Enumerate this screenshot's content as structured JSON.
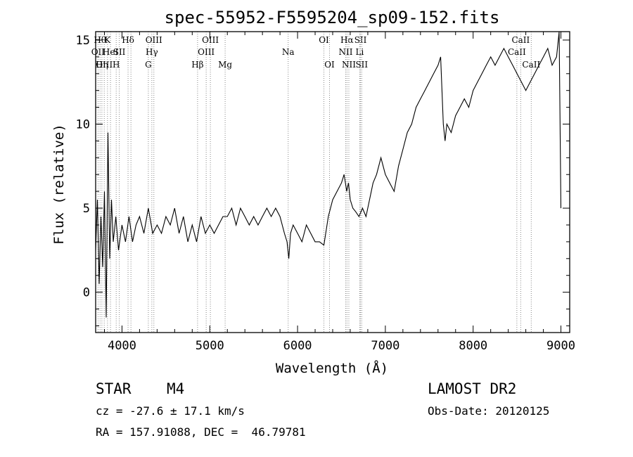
{
  "chart_data": {
    "type": "line",
    "title": "spec-55952-F5595204_sp09-152.fits",
    "xlabel": "Wavelength (Å)",
    "ylabel": "Flux (relative)",
    "xlim": [
      3700,
      9100
    ],
    "ylim": [
      -2.4,
      15.5
    ],
    "xticks": [
      4000,
      5000,
      6000,
      7000,
      8000,
      9000
    ],
    "yticks": [
      0,
      5,
      10,
      15
    ],
    "grid": false,
    "series": [
      {
        "x": [
          3700,
          3720,
          3740,
          3760,
          3780,
          3800,
          3820,
          3840,
          3860,
          3880,
          3900,
          3930,
          3960,
          4000,
          4040,
          4080,
          4120,
          4160,
          4200,
          4250,
          4300,
          4350,
          4400,
          4450,
          4500,
          4550,
          4600,
          4650,
          4700,
          4750,
          4800,
          4850,
          4900,
          4950,
          5000,
          5050,
          5100,
          5150,
          5200,
          5250,
          5300,
          5350,
          5400,
          5450,
          5500,
          5550,
          5600,
          5650,
          5700,
          5750,
          5800,
          5850,
          5880,
          5900,
          5920,
          5950,
          6000,
          6050,
          6100,
          6150,
          6200,
          6250,
          6300,
          6350,
          6400,
          6450,
          6500,
          6530,
          6560,
          6580,
          6600,
          6630,
          6660,
          6700,
          6740,
          6780,
          6820,
          6860,
          6900,
          6950,
          7000,
          7050,
          7100,
          7150,
          7200,
          7250,
          7300,
          7350,
          7400,
          7450,
          7500,
          7550,
          7600,
          7630,
          7660,
          7680,
          7700,
          7750,
          7800,
          7850,
          7900,
          7950,
          8000,
          8050,
          8100,
          8150,
          8200,
          8250,
          8300,
          8350,
          8400,
          8450,
          8500,
          8550,
          8600,
          8650,
          8700,
          8750,
          8800,
          8850,
          8900,
          8950,
          8980,
          9000
        ],
        "y": [
          2.5,
          5.5,
          0.5,
          4.5,
          1.5,
          6.0,
          -1.5,
          9.5,
          2.0,
          5.5,
          3.0,
          4.5,
          2.5,
          4.0,
          3.0,
          4.5,
          3.0,
          4.0,
          4.5,
          3.5,
          5.0,
          3.5,
          4.0,
          3.5,
          4.5,
          4.0,
          5.0,
          3.5,
          4.5,
          3.0,
          4.0,
          3.0,
          4.5,
          3.5,
          4.0,
          3.5,
          4.0,
          4.5,
          4.5,
          5.0,
          4.0,
          5.0,
          4.5,
          4.0,
          4.5,
          4.0,
          4.5,
          5.0,
          4.5,
          5.0,
          4.5,
          3.5,
          3.0,
          2.0,
          3.5,
          4.0,
          3.5,
          3.0,
          4.0,
          3.5,
          3.0,
          3.0,
          2.8,
          4.5,
          5.5,
          6.0,
          6.5,
          7.0,
          6.0,
          6.5,
          5.5,
          5.0,
          4.8,
          4.5,
          5.0,
          4.5,
          5.5,
          6.5,
          7.0,
          8.0,
          7.0,
          6.5,
          6.0,
          7.5,
          8.5,
          9.5,
          10.0,
          11.0,
          11.5,
          12.0,
          12.5,
          13.0,
          13.5,
          14.0,
          10.0,
          9.0,
          10.0,
          9.5,
          10.5,
          11.0,
          11.5,
          11.0,
          12.0,
          12.5,
          13.0,
          13.5,
          14.0,
          13.5,
          14.0,
          14.5,
          14.0,
          13.5,
          13.0,
          12.5,
          12.0,
          12.5,
          13.0,
          13.5,
          14.0,
          14.5,
          13.5,
          14.0,
          15.5,
          5.0
        ]
      }
    ],
    "lines": [
      {
        "w": 3727,
        "label": "OII",
        "row": 2
      },
      {
        "w": 3750,
        "label": "Hθ",
        "row": 1
      },
      {
        "w": 3771,
        "label": "Hη",
        "row": 3
      },
      {
        "w": 3798,
        "label": "OIII",
        "row": 3
      },
      {
        "w": 3835,
        "label": "K",
        "row": 1
      },
      {
        "w": 3869,
        "label": "HeI",
        "row": 2
      },
      {
        "w": 3934,
        "label": "H",
        "row": 3
      },
      {
        "w": 3969,
        "label": "SII",
        "row": 2
      },
      {
        "w": 4069,
        "label": "Hδ",
        "row": 1
      },
      {
        "w": 4102,
        "label": "",
        "row": 0
      },
      {
        "w": 4300,
        "label": "G",
        "row": 3
      },
      {
        "w": 4340,
        "label": "Hγ",
        "row": 2
      },
      {
        "w": 4363,
        "label": "OIII",
        "row": 1
      },
      {
        "w": 4861,
        "label": "Hβ",
        "row": 3
      },
      {
        "w": 4959,
        "label": "OIII",
        "row": 2
      },
      {
        "w": 5007,
        "label": "OIII",
        "row": 1
      },
      {
        "w": 5175,
        "label": "Mg",
        "row": 3
      },
      {
        "w": 5893,
        "label": "Na",
        "row": 2
      },
      {
        "w": 6300,
        "label": "OI",
        "row": 1
      },
      {
        "w": 6364,
        "label": "OI",
        "row": 3
      },
      {
        "w": 6548,
        "label": "NII",
        "row": 2
      },
      {
        "w": 6563,
        "label": "Hα",
        "row": 1
      },
      {
        "w": 6584,
        "label": "NII",
        "row": 3
      },
      {
        "w": 6708,
        "label": "Li",
        "row": 2
      },
      {
        "w": 6717,
        "label": "SII",
        "row": 1
      },
      {
        "w": 6731,
        "label": "SII",
        "row": 3
      },
      {
        "w": 8498,
        "label": "CaII",
        "row": 2
      },
      {
        "w": 8542,
        "label": "CaII",
        "row": 1
      },
      {
        "w": 8662,
        "label": "CaII",
        "row": 3
      }
    ]
  },
  "info": {
    "object_class": "STAR",
    "subclass": "M4",
    "survey": "LAMOST DR2",
    "redshift_text": "cz = -27.6 ± 17.1 km/s",
    "obs_date": "Obs-Date: 20120125",
    "coords": "RA = 157.91088, DEC =  46.79781"
  }
}
